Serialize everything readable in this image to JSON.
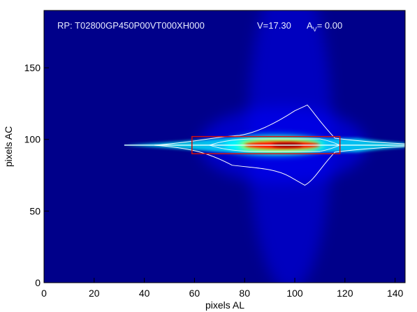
{
  "chart_data": {
    "type": "heatmap",
    "title_parts": {
      "rp": "RP: T02800GP450P00VT000XH000",
      "v": "V=17.30",
      "av_main": "A",
      "av_sub": "V",
      "av_value": "= 0.00"
    },
    "xlabel": "pixels AL",
    "ylabel": "pixels AC",
    "xlim": [
      0,
      144
    ],
    "ylim": [
      0,
      190
    ],
    "xticks": [
      0,
      20,
      40,
      60,
      80,
      100,
      120,
      140
    ],
    "yticks": [
      0,
      50,
      100,
      150
    ],
    "spectrum_center_y": 96,
    "spectrum_x_range": [
      32,
      144
    ],
    "peak_x_range": [
      80,
      110
    ],
    "window_box": {
      "x": [
        59,
        118
      ],
      "y": [
        90,
        102
      ]
    },
    "contour_color": "#ffffff",
    "window_color": "#d21010",
    "colormap": [
      "#00008f",
      "#0000ff",
      "#00ffff",
      "#ffff00",
      "#ff0000",
      "#800000"
    ]
  }
}
